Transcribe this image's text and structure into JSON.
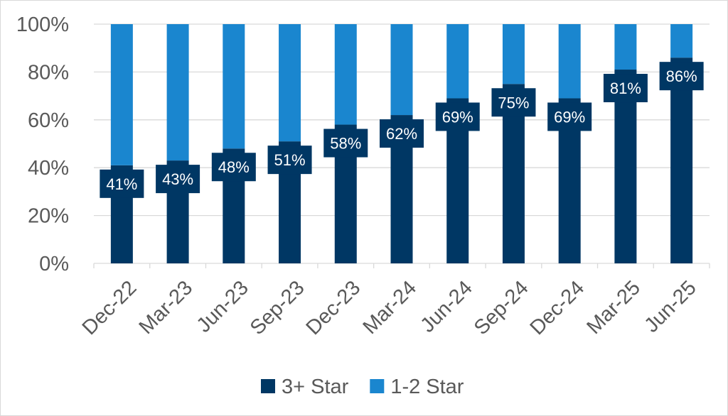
{
  "chart_data": {
    "type": "bar",
    "stacked": true,
    "percent_stacked": true,
    "categories": [
      "Dec-22",
      "Mar-23",
      "Jun-23",
      "Sep-23",
      "Dec-23",
      "Mar-24",
      "Jun-24",
      "Sep-24",
      "Dec-24",
      "Mar-25",
      "Jun-25"
    ],
    "series": [
      {
        "name": "3+ Star",
        "color": "#003764",
        "values": [
          41,
          43,
          48,
          51,
          58,
          62,
          69,
          75,
          69,
          81,
          86
        ],
        "data_labels": [
          "41%",
          "43%",
          "48%",
          "51%",
          "58%",
          "62%",
          "69%",
          "75%",
          "69%",
          "81%",
          "86%"
        ]
      },
      {
        "name": "1-2 Star",
        "color": "#1a86cf",
        "values": [
          59,
          57,
          52,
          49,
          42,
          38,
          31,
          25,
          31,
          19,
          14
        ]
      }
    ],
    "ylim": [
      0,
      100
    ],
    "yticks": [
      0,
      20,
      40,
      60,
      80,
      100
    ],
    "ytick_labels": [
      "0%",
      "20%",
      "40%",
      "60%",
      "80%",
      "100%"
    ],
    "grid": true,
    "legend": "bottom"
  }
}
